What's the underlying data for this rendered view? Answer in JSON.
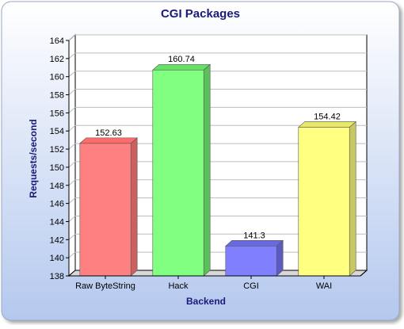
{
  "chart_data": {
    "type": "bar",
    "title": "CGI Packages",
    "xlabel": "Backend",
    "ylabel": "Requests/second",
    "categories": [
      "Raw ByteString",
      "Hack",
      "CGI",
      "WAI"
    ],
    "values": [
      152.63,
      160.74,
      141.3,
      154.42
    ],
    "data_labels": [
      "152.63",
      "160.74",
      "141.3",
      "154.42"
    ],
    "ylim": [
      138,
      164
    ],
    "yticks": [
      "138",
      "140",
      "142",
      "144",
      "146",
      "148",
      "150",
      "152",
      "154",
      "156",
      "158",
      "160",
      "162",
      "164"
    ],
    "grid": true,
    "legend": "none",
    "three_d": true,
    "colors": {
      "background_top": "#ffffff",
      "background_bottom": "#b4c8ee",
      "title": "#1a1a7a",
      "axis_label": "#1a1a7a",
      "bars": [
        "#ff8080",
        "#80ff80",
        "#8080ff",
        "#ffff80"
      ],
      "bar_sides": [
        "#cc6060",
        "#5cbf5c",
        "#5c5cc0",
        "#c8c860"
      ],
      "bar_tops": [
        "#ff6a6a",
        "#66e066",
        "#6a6ae0",
        "#e8e86a"
      ]
    }
  }
}
